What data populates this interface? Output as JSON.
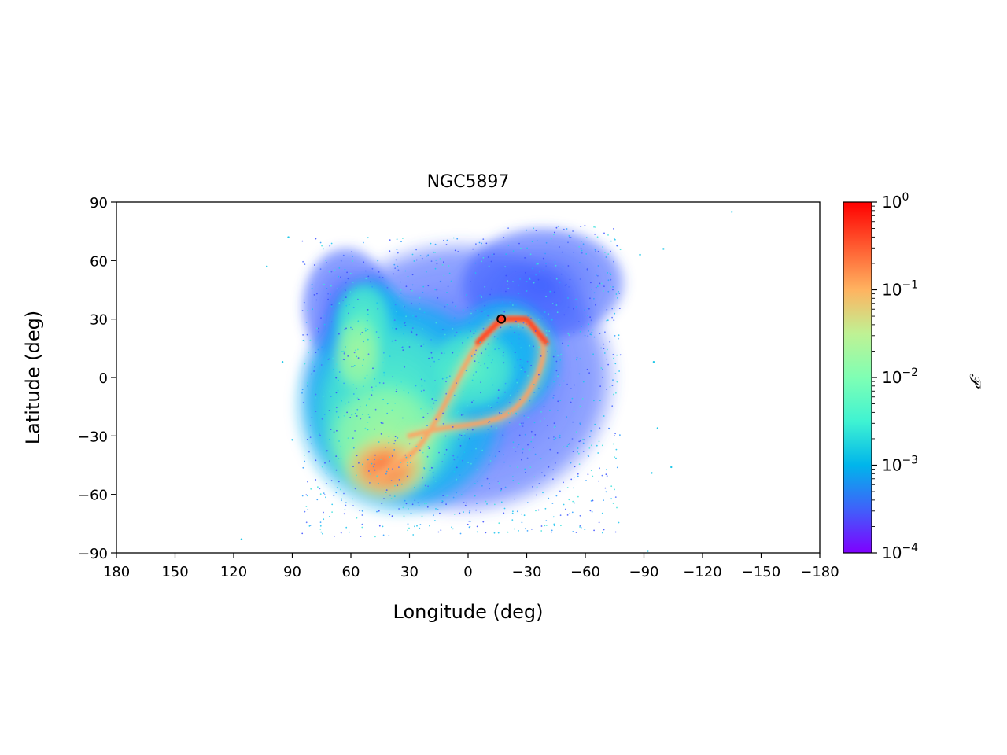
{
  "chart_data": {
    "type": "scatter",
    "title": "NGC5897",
    "xlabel": "Longitude (deg)",
    "ylabel": "Latitude (deg)",
    "xlim": [
      180,
      -180
    ],
    "ylim": [
      -90,
      90
    ],
    "x_ticks": [
      180,
      150,
      120,
      90,
      60,
      30,
      0,
      -30,
      -60,
      -90,
      -120,
      -150,
      -180
    ],
    "x_tick_labels": [
      "180",
      "150",
      "120",
      "90",
      "60",
      "30",
      "0",
      "−30",
      "−60",
      "−90",
      "−120",
      "−150",
      "−180"
    ],
    "y_ticks": [
      90,
      60,
      30,
      0,
      -30,
      -60,
      -90
    ],
    "y_tick_labels": [
      "90",
      "60",
      "30",
      "0",
      "−30",
      "−60",
      "−90"
    ],
    "grid": false,
    "colorbar": {
      "label": "𝒫",
      "scale": "log",
      "range": [
        0.0001,
        1
      ],
      "ticks": [
        0.0001,
        0.001,
        0.01,
        0.1,
        1
      ],
      "tick_labels": [
        {
          "base": "10",
          "exp": "−4"
        },
        {
          "base": "10",
          "exp": "−3"
        },
        {
          "base": "10",
          "exp": "−2"
        },
        {
          "base": "10",
          "exp": "−1"
        },
        {
          "base": "10",
          "exp": "0"
        }
      ],
      "colormap": "rainbow",
      "colormap_stops": [
        "#7f00ff",
        "#3f61fa",
        "#00b5eb",
        "#3ff3d2",
        "#7fffb4",
        "#bff294",
        "#ffb360",
        "#ff5a30",
        "#ff0000"
      ]
    },
    "cluster_marker": {
      "lon": -17,
      "lat": 30
    },
    "density_regions": [
      {
        "description": "broad halo envelope",
        "lon_range": [
          83,
          -75
        ],
        "lat_range": [
          -78,
          68
        ],
        "level": 0.0005
      },
      {
        "description": "main cloud",
        "lon_range": [
          75,
          0
        ],
        "lat_range": [
          -75,
          50
        ],
        "level": 0.02
      },
      {
        "description": "southern peak",
        "lon": 42,
        "lat": -48,
        "level": 0.3
      }
    ],
    "stream_track": [
      {
        "lon": 45,
        "lat": -50
      },
      {
        "lon": 35,
        "lat": -44
      },
      {
        "lon": 25,
        "lat": -36
      },
      {
        "lon": 15,
        "lat": -20
      },
      {
        "lon": 5,
        "lat": 0
      },
      {
        "lon": -5,
        "lat": 18
      },
      {
        "lon": -17,
        "lat": 30
      },
      {
        "lon": -30,
        "lat": 30
      },
      {
        "lon": -40,
        "lat": 18
      },
      {
        "lon": -36,
        "lat": 0
      },
      {
        "lon": -24,
        "lat": -18
      },
      {
        "lon": -6,
        "lat": -24
      },
      {
        "lon": 15,
        "lat": -26
      },
      {
        "lon": 30,
        "lat": -30
      }
    ],
    "outlier_points": [
      {
        "lon": -135,
        "lat": 85
      },
      {
        "lon": 103,
        "lat": 57
      },
      {
        "lon": 92,
        "lat": 72
      },
      {
        "lon": -88,
        "lat": 63
      },
      {
        "lon": -100,
        "lat": 66
      },
      {
        "lon": -95,
        "lat": 8
      },
      {
        "lon": -97,
        "lat": -26
      },
      {
        "lon": -94,
        "lat": -49
      },
      {
        "lon": -104,
        "lat": -46
      },
      {
        "lon": 116,
        "lat": -83
      },
      {
        "lon": -92,
        "lat": -89
      },
      {
        "lon": 95,
        "lat": 8
      },
      {
        "lon": 90,
        "lat": -32
      }
    ]
  }
}
